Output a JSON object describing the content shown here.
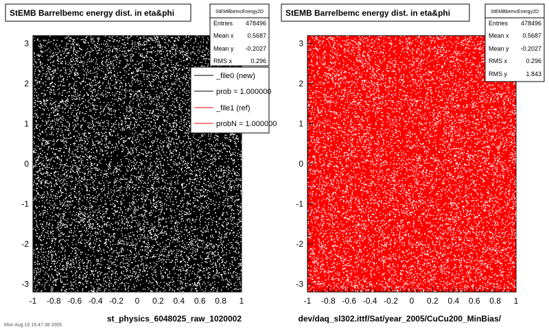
{
  "canvas_footer": "Mon Aug 15 16:47:38 2005",
  "legend": {
    "entries": [
      {
        "label": "_file0 (new)",
        "color": "#000000"
      },
      {
        "label": "prob = 1.000000",
        "color": "#000000"
      },
      {
        "label": "_file1 (ref)",
        "color": "#ff0000"
      },
      {
        "label": "probN = 1.000000",
        "color": "#ff0000"
      }
    ]
  },
  "chart_data": [
    {
      "type": "scatter",
      "title": "StEMB Barrelbemc energy dist. in eta&phi",
      "xlabel": "st_physics_6048025_raw_1020002",
      "ylabel": "",
      "xlim": [
        -1,
        1
      ],
      "ylim": [
        -3.2,
        3.2
      ],
      "x_ticks": [
        "-1",
        "-0.8",
        "-0.6",
        "-0.4",
        "-0.2",
        "0",
        "0.2",
        "0.4",
        "0.6",
        "0.8",
        "1"
      ],
      "y_ticks": [
        "-3",
        "-2",
        "-1",
        "0",
        "1",
        "2",
        "3"
      ],
      "plot_background": "#000000",
      "point_color": "#ffffff",
      "stats": {
        "name": "StEMBbemcEnergy2D",
        "rows": [
          {
            "label": "Entries",
            "value": "478496"
          },
          {
            "label": "Mean x",
            "value": "0.5687"
          },
          {
            "label": "Mean y",
            "value": "-0.2027"
          },
          {
            "label": "RMS x",
            "value": "0.296"
          }
        ]
      }
    },
    {
      "type": "scatter",
      "title": "StEMB Barrelbemc energy dist. in eta&phi",
      "xlabel": "dev/daq_sl302.ittf/Sat/year_2005/CuCu200_MinBias/",
      "ylabel": "",
      "xlim": [
        -1,
        1
      ],
      "ylim": [
        -3.2,
        3.2
      ],
      "x_ticks": [
        "-1",
        "-0.8",
        "-0.6",
        "-0.4",
        "-0.2",
        "0",
        "0.2",
        "0.4",
        "0.6",
        "0.8",
        "1"
      ],
      "y_ticks": [
        "-3",
        "-2",
        "-1",
        "0",
        "1",
        "2",
        "3"
      ],
      "plot_background": "#ff0000",
      "point_color": "#ffffff",
      "stats": {
        "name": "StEMBbemcEnergy2D",
        "rows": [
          {
            "label": "Entries",
            "value": "478496"
          },
          {
            "label": "Mean x",
            "value": "0.5687"
          },
          {
            "label": "Mean y",
            "value": "-0.2027"
          },
          {
            "label": "RMS x",
            "value": "0.296"
          },
          {
            "label": "RMS y",
            "value": "1.843"
          }
        ]
      }
    }
  ]
}
